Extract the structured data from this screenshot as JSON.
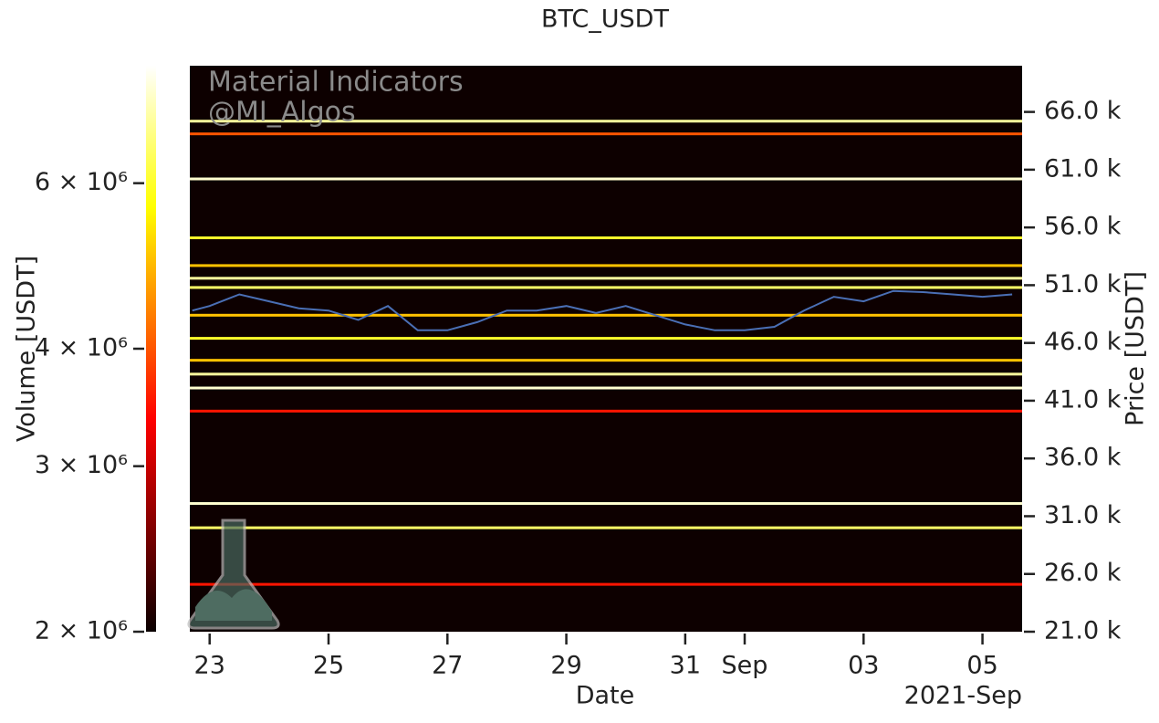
{
  "chart_data": {
    "type": "heatmap",
    "title": "BTC_USDT",
    "watermark": [
      "Material Indicators",
      "@MI_Algos"
    ],
    "x_label": "Date",
    "x_offset_label": "2021-Sep",
    "y_label": "Price [USDT]",
    "xlim": [
      "2021-08-22T16:00",
      "2021-09-05T16:00"
    ],
    "xticks": [
      {
        "value": "2021-08-23T00:00",
        "label": "23"
      },
      {
        "value": "2021-08-25T00:00",
        "label": "25"
      },
      {
        "value": "2021-08-27T00:00",
        "label": "27"
      },
      {
        "value": "2021-08-29T00:00",
        "label": "29"
      },
      {
        "value": "2021-08-31T00:00",
        "label": "31"
      },
      {
        "value": "2021-09-01T00:00",
        "label": "Sep"
      },
      {
        "value": "2021-09-03T00:00",
        "label": "03"
      },
      {
        "value": "2021-09-05T00:00",
        "label": "05"
      }
    ],
    "ylim": [
      21000,
      70000
    ],
    "yticks": [
      {
        "value": 21000,
        "label": "21.0 k"
      },
      {
        "value": 26000,
        "label": "26.0 k"
      },
      {
        "value": 31000,
        "label": "31.0 k"
      },
      {
        "value": 36000,
        "label": "36.0 k"
      },
      {
        "value": 41000,
        "label": "41.0 k"
      },
      {
        "value": 46000,
        "label": "46.0 k"
      },
      {
        "value": 51000,
        "label": "51.0 k"
      },
      {
        "value": 56000,
        "label": "56.0 k"
      },
      {
        "value": 61000,
        "label": "61.0 k"
      },
      {
        "value": 66000,
        "label": "66.0 k"
      }
    ],
    "colorbar": {
      "label": "Volume [USDT]",
      "log": true,
      "colormap": "hot",
      "lim": [
        2000000,
        8000000
      ],
      "ticks": [
        {
          "value": 2000000,
          "label": "2 × 10⁶"
        },
        {
          "value": 3000000,
          "label": "3 × 10⁶"
        },
        {
          "value": 4000000,
          "label": "4 × 10⁶"
        },
        {
          "value": 6000000,
          "label": "6 × 10⁶"
        }
      ]
    },
    "levels": {
      "prices": [
        65200,
        64100,
        60200,
        55100,
        52700,
        51600,
        50800,
        48400,
        46400,
        44500,
        43300,
        42100,
        40100,
        32100,
        30000,
        25100
      ],
      "volumes": [
        7000000,
        4000000,
        7500000,
        6000000,
        5000000,
        7000000,
        6500000,
        5000000,
        6000000,
        5000000,
        7000000,
        7500000,
        3500000,
        7500000,
        6500000,
        3500000
      ]
    },
    "series": [
      {
        "color": "#4a6fb5",
        "x": [
          "2021-08-22T17:00",
          "2021-08-23T00:00",
          "2021-08-23T12:00",
          "2021-08-24T00:00",
          "2021-08-24T12:00",
          "2021-08-25T00:00",
          "2021-08-25T12:00",
          "2021-08-26T00:00",
          "2021-08-26T12:00",
          "2021-08-27T00:00",
          "2021-08-27T12:00",
          "2021-08-28T00:00",
          "2021-08-28T12:00",
          "2021-08-29T00:00",
          "2021-08-29T12:00",
          "2021-08-30T00:00",
          "2021-08-30T12:00",
          "2021-08-31T00:00",
          "2021-08-31T12:00",
          "2021-09-01T00:00",
          "2021-09-01T12:00",
          "2021-09-02T00:00",
          "2021-09-02T12:00",
          "2021-09-03T00:00",
          "2021-09-03T12:00",
          "2021-09-04T00:00",
          "2021-09-04T12:00",
          "2021-09-05T00:00",
          "2021-09-05T12:00"
        ],
        "values": [
          48800,
          49200,
          50200,
          49600,
          49000,
          48800,
          48000,
          49200,
          47100,
          47100,
          47800,
          48800,
          48800,
          49200,
          48600,
          49200,
          48400,
          47600,
          47100,
          47100,
          47400,
          48800,
          50000,
          49600,
          50500,
          50400,
          50200,
          50000,
          50200
        ]
      }
    ]
  }
}
